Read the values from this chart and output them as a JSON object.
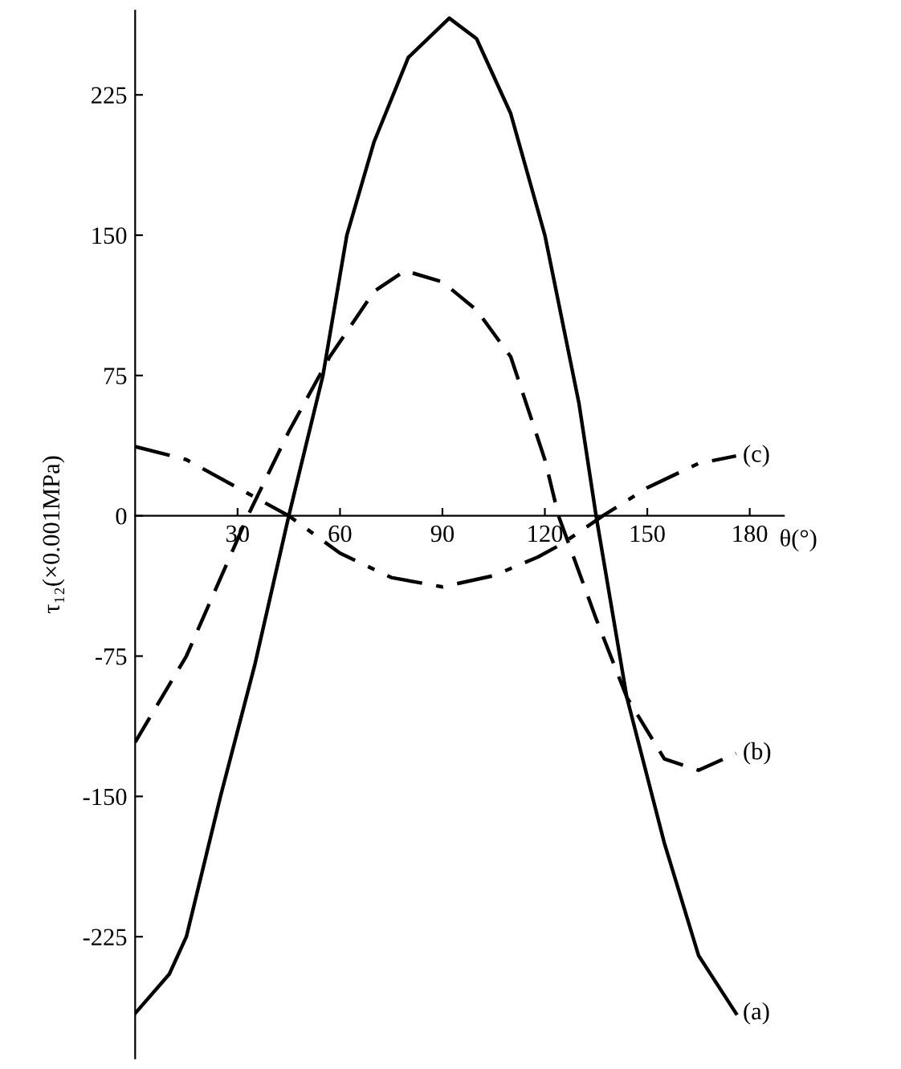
{
  "chart_data": {
    "type": "line",
    "xlabel": "θ(°)",
    "ylabel": "τ₁₂(×0.001MPa)",
    "xlim": [
      0,
      190
    ],
    "ylim": [
      -290,
      270
    ],
    "xticks": [
      30,
      60,
      90,
      120,
      150,
      180
    ],
    "yticks": [
      -225,
      -150,
      -75,
      0,
      75,
      150,
      225
    ],
    "grid": false,
    "legend": false,
    "marker": "none",
    "series": [
      {
        "name": "(a)",
        "color": "#000000",
        "line_style": "solid",
        "x": [
          0,
          10,
          15,
          25,
          35,
          45,
          55,
          62,
          70,
          80,
          92,
          100,
          110,
          120,
          130,
          135,
          144,
          155,
          165,
          176
        ],
        "values": [
          -266,
          -245,
          -225,
          -150,
          -80,
          0,
          75,
          150,
          200,
          245,
          266,
          255,
          215,
          150,
          60,
          0,
          -97,
          -175,
          -235,
          -266
        ]
      },
      {
        "name": "(b)",
        "color": "#000000",
        "line_style": "dashed",
        "x": [
          0,
          15,
          33,
          45,
          57,
          70,
          79,
          90,
          100,
          110,
          120,
          124,
          135,
          144,
          155,
          165,
          176
        ],
        "values": [
          -121,
          -75,
          0,
          45,
          85,
          120,
          131,
          125,
          110,
          85,
          30,
          0,
          -55,
          -97,
          -130,
          -136,
          -127
        ]
      },
      {
        "name": "(c)",
        "color": "#000000",
        "line_style": "dashdot",
        "x": [
          0,
          15,
          30,
          45,
          60,
          75,
          90,
          105,
          118,
          125,
          137,
          150,
          165,
          176
        ],
        "values": [
          37,
          30,
          15,
          0,
          -20,
          -33,
          -38,
          -32,
          -22,
          -15,
          0,
          15,
          28,
          32
        ]
      }
    ]
  }
}
